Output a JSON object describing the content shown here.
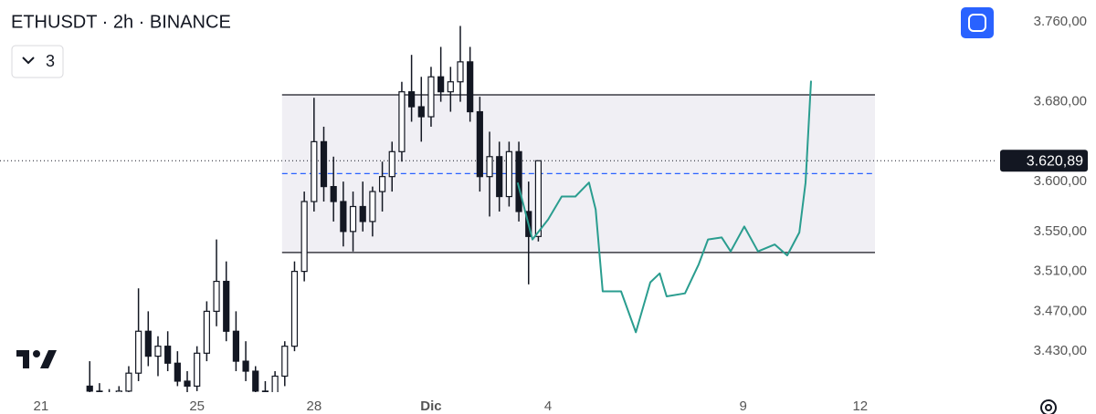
{
  "chart_data": {
    "type": "candlestick",
    "title": "ETHUSDT · 2h · BINANCE",
    "indicator_count": "3",
    "xlim": [
      -1.05,
      24.47
    ],
    "ylim": [
      3389,
      3782
    ],
    "xticks": [
      {
        "value": 0,
        "label": "21"
      },
      {
        "value": 4,
        "label": "25"
      },
      {
        "value": 7,
        "label": "28"
      },
      {
        "value": 10,
        "label": "Dic"
      },
      {
        "value": 13,
        "label": "4"
      },
      {
        "value": 18,
        "label": "9"
      },
      {
        "value": 21,
        "label": "12"
      }
    ],
    "yticks": [
      {
        "value": 3760,
        "label": "3.760,00"
      },
      {
        "value": 3680,
        "label": "3.680,00"
      },
      {
        "value": 3600,
        "label": "3.600,00"
      },
      {
        "value": 3550,
        "label": "3.550,00"
      },
      {
        "value": 3510,
        "label": "3.510,00"
      },
      {
        "value": 3470,
        "label": "3.470,00"
      },
      {
        "value": 3430,
        "label": "3.430,00"
      }
    ],
    "grid": false,
    "up_color": "#ffffff",
    "down_color": "#131722",
    "candles": {
      "x": [
        1.25,
        1.5,
        1.75,
        2.0,
        2.25,
        2.5,
        2.75,
        3.0,
        3.25,
        3.5,
        3.75,
        4.0,
        4.25,
        4.5,
        4.75,
        5.0,
        5.25,
        5.5,
        5.75,
        6.0,
        6.25,
        6.5,
        6.75,
        7.0,
        7.25,
        7.5,
        7.75,
        8.0,
        8.25,
        8.5,
        8.75,
        9.0,
        9.25,
        9.5,
        9.75,
        10.0,
        10.25,
        10.5,
        10.75,
        11.0,
        11.25,
        11.5,
        11.75,
        12.0,
        12.25,
        12.5,
        12.75
      ],
      "open": [
        3395,
        3390,
        3385,
        3380,
        3390,
        3408,
        3450,
        3425,
        3435,
        3418,
        3400,
        3395,
        3428,
        3470,
        3500,
        3450,
        3420,
        3410,
        3390,
        3385,
        3405,
        3435,
        3510,
        3580,
        3640,
        3595,
        3580,
        3550,
        3575,
        3560,
        3590,
        3605,
        3630,
        3690,
        3675,
        3665,
        3705,
        3690,
        3700,
        3720,
        3670,
        3605,
        3625,
        3585,
        3630,
        3570,
        3545
      ],
      "high": [
        3420,
        3398,
        3392,
        3395,
        3415,
        3493,
        3470,
        3445,
        3450,
        3430,
        3410,
        3435,
        3480,
        3542,
        3520,
        3470,
        3440,
        3415,
        3400,
        3410,
        3440,
        3520,
        3590,
        3684,
        3655,
        3625,
        3600,
        3590,
        3600,
        3595,
        3620,
        3640,
        3700,
        3727,
        3705,
        3715,
        3735,
        3715,
        3756,
        3735,
        3685,
        3650,
        3640,
        3640,
        3640,
        3600,
        3621
      ],
      "low": [
        3380,
        3375,
        3370,
        3372,
        3385,
        3400,
        3415,
        3405,
        3410,
        3395,
        3385,
        3390,
        3420,
        3455,
        3440,
        3410,
        3400,
        3385,
        3375,
        3380,
        3395,
        3430,
        3500,
        3570,
        3580,
        3560,
        3535,
        3530,
        3550,
        3545,
        3570,
        3590,
        3620,
        3660,
        3640,
        3655,
        3680,
        3670,
        3680,
        3660,
        3590,
        3565,
        3570,
        3575,
        3560,
        3497,
        3540
      ],
      "close": [
        3390,
        3385,
        3380,
        3390,
        3408,
        3450,
        3425,
        3435,
        3418,
        3400,
        3395,
        3428,
        3470,
        3500,
        3450,
        3420,
        3410,
        3390,
        3385,
        3405,
        3435,
        3510,
        3580,
        3640,
        3595,
        3580,
        3550,
        3575,
        3560,
        3590,
        3605,
        3630,
        3690,
        3675,
        3665,
        3705,
        3690,
        3700,
        3720,
        3670,
        3605,
        3625,
        3585,
        3630,
        3570,
        3545,
        3620.89
      ]
    },
    "range_box": {
      "x": [
        6.18,
        21.38
      ],
      "y": [
        3529,
        3687
      ],
      "fill": "#f0eff4",
      "border": "#3b3b45"
    },
    "midline": {
      "value": 3608,
      "color": "#2962ff"
    },
    "forecast": {
      "color": "#2a9d8f",
      "x": [
        12.22,
        12.6,
        13.0,
        13.35,
        13.7,
        14.05,
        14.22,
        14.4,
        14.87,
        15.25,
        15.62,
        15.86,
        16.04,
        16.51,
        16.86,
        17.1,
        17.45,
        17.68,
        18.03,
        18.38,
        18.81,
        19.13,
        19.44,
        19.6,
        19.74
      ],
      "values": [
        3599,
        3542,
        3562,
        3585,
        3585,
        3599,
        3572,
        3490,
        3490,
        3449,
        3499,
        3508,
        3485,
        3488,
        3517,
        3542,
        3544,
        3530,
        3555,
        3530,
        3537,
        3526,
        3549,
        3599,
        3701
      ]
    },
    "last_price": {
      "value": 3620.89,
      "label": "3.620,89"
    }
  }
}
